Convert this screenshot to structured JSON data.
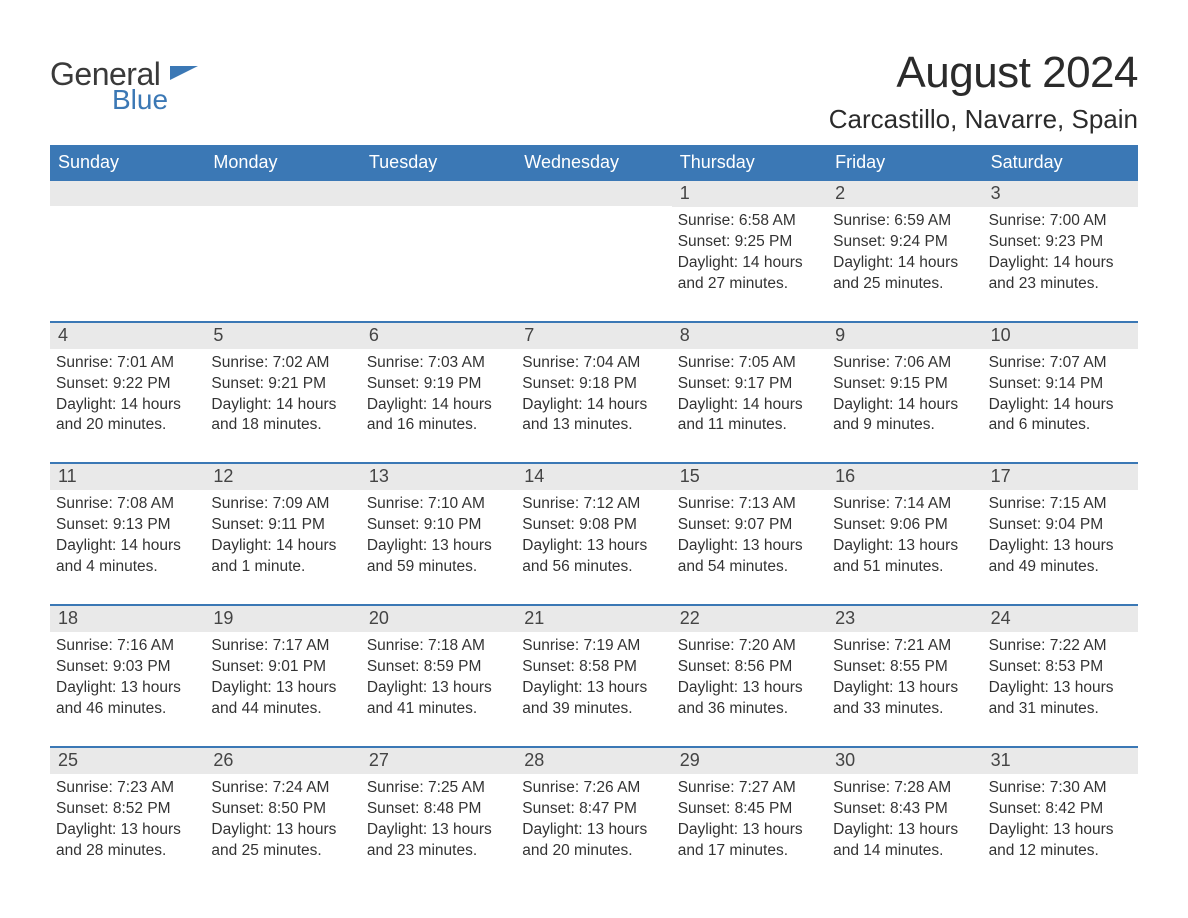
{
  "logo": {
    "line1": "General",
    "line2": "Blue"
  },
  "title": "August 2024",
  "location": "Carcastillo, Navarre, Spain",
  "colors": {
    "header_bg": "#3b78b5",
    "header_text": "#ffffff",
    "daynum_bg": "#e9e9e9",
    "body_text": "#333333",
    "logo_gray": "#3a3a3a",
    "logo_blue": "#3b78b5",
    "page_bg": "#ffffff"
  },
  "weekdays": [
    "Sunday",
    "Monday",
    "Tuesday",
    "Wednesday",
    "Thursday",
    "Friday",
    "Saturday"
  ],
  "weeks": [
    [
      null,
      null,
      null,
      null,
      {
        "n": "1",
        "sunrise": "6:58 AM",
        "sunset": "9:25 PM",
        "daylight": "14 hours and 27 minutes."
      },
      {
        "n": "2",
        "sunrise": "6:59 AM",
        "sunset": "9:24 PM",
        "daylight": "14 hours and 25 minutes."
      },
      {
        "n": "3",
        "sunrise": "7:00 AM",
        "sunset": "9:23 PM",
        "daylight": "14 hours and 23 minutes."
      }
    ],
    [
      {
        "n": "4",
        "sunrise": "7:01 AM",
        "sunset": "9:22 PM",
        "daylight": "14 hours and 20 minutes."
      },
      {
        "n": "5",
        "sunrise": "7:02 AM",
        "sunset": "9:21 PM",
        "daylight": "14 hours and 18 minutes."
      },
      {
        "n": "6",
        "sunrise": "7:03 AM",
        "sunset": "9:19 PM",
        "daylight": "14 hours and 16 minutes."
      },
      {
        "n": "7",
        "sunrise": "7:04 AM",
        "sunset": "9:18 PM",
        "daylight": "14 hours and 13 minutes."
      },
      {
        "n": "8",
        "sunrise": "7:05 AM",
        "sunset": "9:17 PM",
        "daylight": "14 hours and 11 minutes."
      },
      {
        "n": "9",
        "sunrise": "7:06 AM",
        "sunset": "9:15 PM",
        "daylight": "14 hours and 9 minutes."
      },
      {
        "n": "10",
        "sunrise": "7:07 AM",
        "sunset": "9:14 PM",
        "daylight": "14 hours and 6 minutes."
      }
    ],
    [
      {
        "n": "11",
        "sunrise": "7:08 AM",
        "sunset": "9:13 PM",
        "daylight": "14 hours and 4 minutes."
      },
      {
        "n": "12",
        "sunrise": "7:09 AM",
        "sunset": "9:11 PM",
        "daylight": "14 hours and 1 minute."
      },
      {
        "n": "13",
        "sunrise": "7:10 AM",
        "sunset": "9:10 PM",
        "daylight": "13 hours and 59 minutes."
      },
      {
        "n": "14",
        "sunrise": "7:12 AM",
        "sunset": "9:08 PM",
        "daylight": "13 hours and 56 minutes."
      },
      {
        "n": "15",
        "sunrise": "7:13 AM",
        "sunset": "9:07 PM",
        "daylight": "13 hours and 54 minutes."
      },
      {
        "n": "16",
        "sunrise": "7:14 AM",
        "sunset": "9:06 PM",
        "daylight": "13 hours and 51 minutes."
      },
      {
        "n": "17",
        "sunrise": "7:15 AM",
        "sunset": "9:04 PM",
        "daylight": "13 hours and 49 minutes."
      }
    ],
    [
      {
        "n": "18",
        "sunrise": "7:16 AM",
        "sunset": "9:03 PM",
        "daylight": "13 hours and 46 minutes."
      },
      {
        "n": "19",
        "sunrise": "7:17 AM",
        "sunset": "9:01 PM",
        "daylight": "13 hours and 44 minutes."
      },
      {
        "n": "20",
        "sunrise": "7:18 AM",
        "sunset": "8:59 PM",
        "daylight": "13 hours and 41 minutes."
      },
      {
        "n": "21",
        "sunrise": "7:19 AM",
        "sunset": "8:58 PM",
        "daylight": "13 hours and 39 minutes."
      },
      {
        "n": "22",
        "sunrise": "7:20 AM",
        "sunset": "8:56 PM",
        "daylight": "13 hours and 36 minutes."
      },
      {
        "n": "23",
        "sunrise": "7:21 AM",
        "sunset": "8:55 PM",
        "daylight": "13 hours and 33 minutes."
      },
      {
        "n": "24",
        "sunrise": "7:22 AM",
        "sunset": "8:53 PM",
        "daylight": "13 hours and 31 minutes."
      }
    ],
    [
      {
        "n": "25",
        "sunrise": "7:23 AM",
        "sunset": "8:52 PM",
        "daylight": "13 hours and 28 minutes."
      },
      {
        "n": "26",
        "sunrise": "7:24 AM",
        "sunset": "8:50 PM",
        "daylight": "13 hours and 25 minutes."
      },
      {
        "n": "27",
        "sunrise": "7:25 AM",
        "sunset": "8:48 PM",
        "daylight": "13 hours and 23 minutes."
      },
      {
        "n": "28",
        "sunrise": "7:26 AM",
        "sunset": "8:47 PM",
        "daylight": "13 hours and 20 minutes."
      },
      {
        "n": "29",
        "sunrise": "7:27 AM",
        "sunset": "8:45 PM",
        "daylight": "13 hours and 17 minutes."
      },
      {
        "n": "30",
        "sunrise": "7:28 AM",
        "sunset": "8:43 PM",
        "daylight": "13 hours and 14 minutes."
      },
      {
        "n": "31",
        "sunrise": "7:30 AM",
        "sunset": "8:42 PM",
        "daylight": "13 hours and 12 minutes."
      }
    ]
  ],
  "labels": {
    "sunrise": "Sunrise: ",
    "sunset": "Sunset: ",
    "daylight": "Daylight: "
  }
}
